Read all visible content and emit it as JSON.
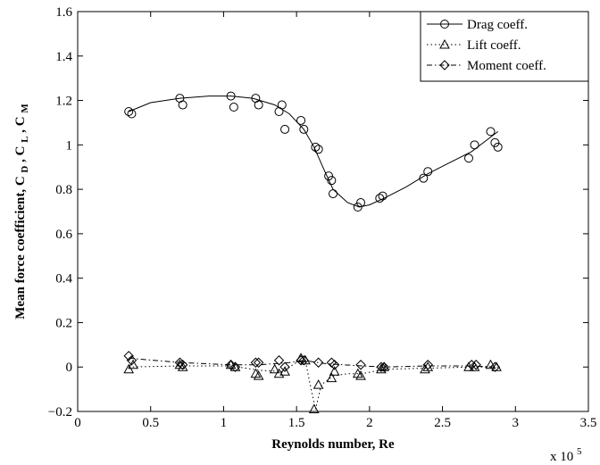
{
  "chart_data": {
    "type": "scatter",
    "xlabel": "Reynolds number, Re",
    "ylabel": "Mean force coefficient, C",
    "ylabel_parts": [
      "D",
      ", C",
      "L",
      ", C",
      "M"
    ],
    "xlim": [
      0,
      3.5
    ],
    "ylim": [
      -0.2,
      1.6
    ],
    "x_ticks": [
      "0",
      "0.5",
      "1",
      "1.5",
      "2",
      "2.5",
      "3",
      "3.5"
    ],
    "y_ticks": [
      "−0.2",
      "0",
      "0.2",
      "0.4",
      "0.6",
      "0.8",
      "1",
      "1.2",
      "1.4",
      "1.6"
    ],
    "x_exponent_base": "x 10",
    "x_exponent_power": "5",
    "legend_position": "top-right",
    "grid": false,
    "series": [
      {
        "name": "Drag coeff.",
        "marker": "circle",
        "line": "solid",
        "points": [
          [
            0.35,
            1.15
          ],
          [
            0.37,
            1.14
          ],
          [
            0.7,
            1.21
          ],
          [
            0.72,
            1.18
          ],
          [
            1.05,
            1.22
          ],
          [
            1.07,
            1.17
          ],
          [
            1.22,
            1.21
          ],
          [
            1.24,
            1.18
          ],
          [
            1.38,
            1.15
          ],
          [
            1.4,
            1.18
          ],
          [
            1.42,
            1.07
          ],
          [
            1.53,
            1.11
          ],
          [
            1.55,
            1.07
          ],
          [
            1.63,
            0.99
          ],
          [
            1.65,
            0.98
          ],
          [
            1.72,
            0.86
          ],
          [
            1.74,
            0.84
          ],
          [
            1.75,
            0.78
          ],
          [
            1.92,
            0.72
          ],
          [
            1.94,
            0.74
          ],
          [
            2.07,
            0.76
          ],
          [
            2.09,
            0.77
          ],
          [
            2.37,
            0.85
          ],
          [
            2.4,
            0.88
          ],
          [
            2.68,
            0.94
          ],
          [
            2.72,
            1.0
          ],
          [
            2.83,
            1.06
          ],
          [
            2.86,
            1.01
          ],
          [
            2.88,
            0.99
          ]
        ],
        "curve": [
          [
            0.35,
            1.15
          ],
          [
            0.5,
            1.19
          ],
          [
            0.7,
            1.21
          ],
          [
            0.9,
            1.22
          ],
          [
            1.05,
            1.22
          ],
          [
            1.2,
            1.21
          ],
          [
            1.35,
            1.18
          ],
          [
            1.45,
            1.14
          ],
          [
            1.55,
            1.07
          ],
          [
            1.62,
            0.99
          ],
          [
            1.68,
            0.9
          ],
          [
            1.75,
            0.8
          ],
          [
            1.85,
            0.74
          ],
          [
            1.93,
            0.72
          ],
          [
            2.0,
            0.73
          ],
          [
            2.1,
            0.76
          ],
          [
            2.25,
            0.81
          ],
          [
            2.4,
            0.87
          ],
          [
            2.55,
            0.92
          ],
          [
            2.7,
            0.97
          ],
          [
            2.8,
            1.02
          ],
          [
            2.88,
            1.06
          ]
        ]
      },
      {
        "name": "Lift coeff.",
        "marker": "triangle",
        "line": "dotted",
        "points": [
          [
            0.35,
            -0.01
          ],
          [
            0.38,
            0.01
          ],
          [
            0.7,
            0.01
          ],
          [
            0.72,
            0.0
          ],
          [
            1.05,
            0.01
          ],
          [
            1.08,
            0.0
          ],
          [
            1.22,
            -0.03
          ],
          [
            1.24,
            -0.04
          ],
          [
            1.35,
            -0.01
          ],
          [
            1.38,
            -0.03
          ],
          [
            1.42,
            -0.02
          ],
          [
            1.53,
            0.04
          ],
          [
            1.56,
            0.03
          ],
          [
            1.62,
            -0.19
          ],
          [
            1.65,
            -0.08
          ],
          [
            1.74,
            -0.05
          ],
          [
            1.76,
            -0.02
          ],
          [
            1.92,
            -0.03
          ],
          [
            1.94,
            -0.04
          ],
          [
            2.08,
            -0.01
          ],
          [
            2.1,
            0.0
          ],
          [
            2.38,
            -0.01
          ],
          [
            2.4,
            0.0
          ],
          [
            2.68,
            0.0
          ],
          [
            2.72,
            0.0
          ],
          [
            2.83,
            0.01
          ],
          [
            2.87,
            0.0
          ]
        ],
        "curve": [
          [
            0.35,
            0.0
          ],
          [
            0.7,
            0.005
          ],
          [
            1.05,
            0.005
          ],
          [
            1.25,
            -0.015
          ],
          [
            1.4,
            -0.02
          ],
          [
            1.5,
            0.02
          ],
          [
            1.56,
            0.03
          ],
          [
            1.6,
            -0.1
          ],
          [
            1.63,
            -0.19
          ],
          [
            1.67,
            -0.08
          ],
          [
            1.75,
            -0.04
          ],
          [
            1.85,
            -0.03
          ],
          [
            1.95,
            -0.03
          ],
          [
            2.1,
            -0.01
          ],
          [
            2.4,
            -0.005
          ],
          [
            2.7,
            0.0
          ],
          [
            2.88,
            0.0
          ]
        ]
      },
      {
        "name": "Moment coeff.",
        "marker": "diamond",
        "line": "dashdot",
        "points": [
          [
            0.35,
            0.05
          ],
          [
            0.37,
            0.03
          ],
          [
            0.7,
            0.02
          ],
          [
            0.72,
            0.01
          ],
          [
            1.05,
            0.01
          ],
          [
            1.08,
            0.0
          ],
          [
            1.22,
            0.02
          ],
          [
            1.24,
            0.02
          ],
          [
            1.38,
            0.03
          ],
          [
            1.42,
            0.0
          ],
          [
            1.53,
            0.03
          ],
          [
            1.55,
            0.03
          ],
          [
            1.65,
            0.02
          ],
          [
            1.74,
            0.02
          ],
          [
            1.76,
            0.01
          ],
          [
            1.94,
            0.01
          ],
          [
            2.08,
            0.0
          ],
          [
            2.1,
            0.0
          ],
          [
            2.4,
            0.01
          ],
          [
            2.7,
            0.01
          ],
          [
            2.73,
            0.01
          ],
          [
            2.86,
            0.0
          ]
        ],
        "curve": [
          [
            0.35,
            0.04
          ],
          [
            0.7,
            0.02
          ],
          [
            1.05,
            0.01
          ],
          [
            1.25,
            0.01
          ],
          [
            1.45,
            0.02
          ],
          [
            1.55,
            0.03
          ],
          [
            1.7,
            0.015
          ],
          [
            1.95,
            0.005
          ],
          [
            2.1,
            0.0
          ],
          [
            2.4,
            0.005
          ],
          [
            2.7,
            0.005
          ],
          [
            2.86,
            0.0
          ]
        ]
      }
    ]
  }
}
